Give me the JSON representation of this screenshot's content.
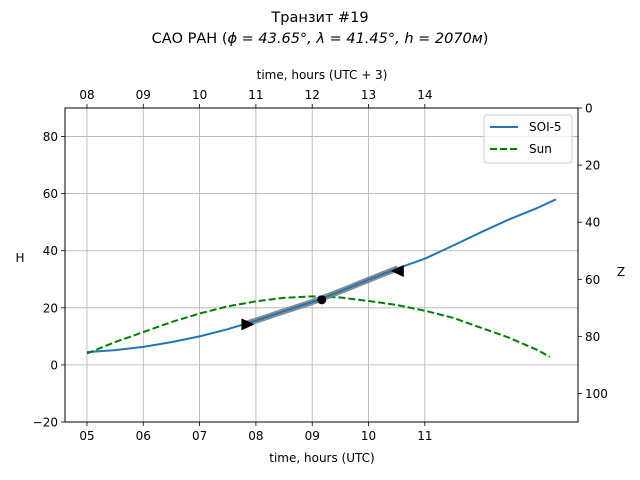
{
  "chart_data": {
    "type": "line",
    "title": "Транзит #19",
    "subtitle_prefix": "САО РАН (",
    "subtitle_math": "ϕ = 43.65°, λ = 41.45°, h = 2070м",
    "subtitle_suffix": ")",
    "xlabel": "time, hours (UTC)",
    "xlabel_top": "time, hours (UTC + 3)",
    "ylabel": "H",
    "ylabel_right": "Z",
    "xlim": [
      4.61,
      13.72
    ],
    "ylim": [
      -20,
      90
    ],
    "ylim_right": [
      110,
      0
    ],
    "x_ticks": [
      5,
      6,
      7,
      8,
      9,
      10,
      11
    ],
    "x_tick_labels": [
      "05",
      "06",
      "07",
      "08",
      "09",
      "10",
      "11"
    ],
    "x_top_ticks": [
      5,
      6,
      7,
      8,
      9,
      10,
      11
    ],
    "x_top_tick_labels": [
      "08",
      "09",
      "10",
      "11",
      "12",
      "13",
      "14"
    ],
    "y_ticks": [
      -20,
      0,
      20,
      40,
      60,
      80
    ],
    "y_tick_labels": [
      "−20",
      "0",
      "20",
      "40",
      "60",
      "80"
    ],
    "y_right_ticks": [
      0,
      20,
      40,
      60,
      80,
      100
    ],
    "y_right_tick_labels": [
      "0",
      "20",
      "40",
      "60",
      "80",
      "100"
    ],
    "grid": true,
    "legend_position": "top-right",
    "series": [
      {
        "name": "SOI-5",
        "color": "#1f77b4",
        "style": "solid",
        "x": [
          5.0,
          5.5,
          6.0,
          6.5,
          7.0,
          7.5,
          8.0,
          8.5,
          9.0,
          9.5,
          10.0,
          10.5,
          11.0,
          11.5,
          12.0,
          12.5,
          13.0,
          13.33
        ],
        "y": [
          4.5,
          5.2,
          6.3,
          8.0,
          10.0,
          12.5,
          15.5,
          18.8,
          22.0,
          25.8,
          29.8,
          33.7,
          37.2,
          41.8,
          46.5,
          51.0,
          55.0,
          58.0
        ]
      },
      {
        "name": "Sun",
        "color": "#008000",
        "style": "dashed",
        "x": [
          5.0,
          5.5,
          6.0,
          6.5,
          7.0,
          7.5,
          8.0,
          8.5,
          9.0,
          9.5,
          10.0,
          10.5,
          11.0,
          11.5,
          12.0,
          12.5,
          13.0,
          13.22
        ],
        "y": [
          4.0,
          8.0,
          11.5,
          15.0,
          18.0,
          20.5,
          22.3,
          23.5,
          24.0,
          23.6,
          22.4,
          21.0,
          19.0,
          16.5,
          13.0,
          9.5,
          5.2,
          2.8
        ]
      }
    ],
    "transit": {
      "color": "#808080",
      "start": {
        "x": 7.85,
        "y": 14.2
      },
      "middle": {
        "x": 9.17,
        "y": 22.8
      },
      "end": {
        "x": 10.52,
        "y": 32.9
      }
    }
  }
}
